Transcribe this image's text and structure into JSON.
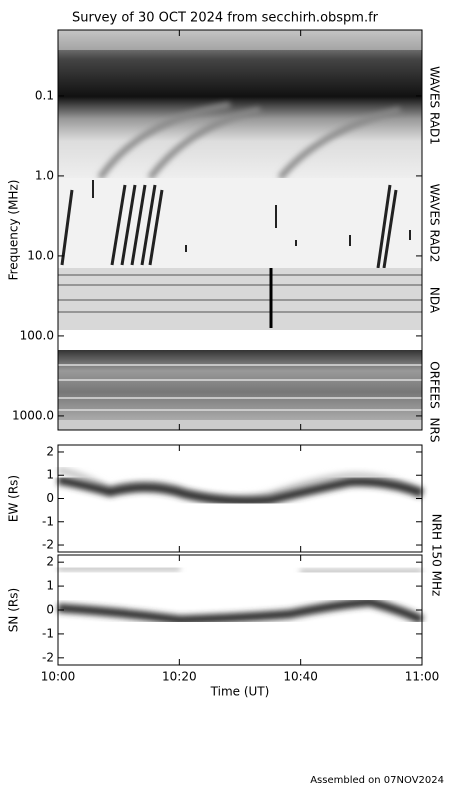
{
  "title": "Survey of 30 OCT 2024 from secchirh.obspm.fr",
  "footer": "Assembled on 07NOV2024",
  "nrh_label": "NRH 150 MHz",
  "chart_data": [
    {
      "type": "spectrogram",
      "ylabel": "Frequency (MHz)",
      "ylog": true,
      "yinvert": true,
      "ylim": [
        0.015,
        1500
      ],
      "yticks": [
        0.1,
        {
          "value": 1,
          "label": "1.0"
        },
        {
          "value": 10,
          "label": "10.0"
        },
        {
          "value": 100,
          "label": "100.0"
        },
        {
          "value": 1000,
          "label": "1000.0"
        }
      ],
      "bands": [
        "WAVES RAD1",
        "WAVES RAD2",
        "NDA",
        "ORFEES",
        "NRS"
      ],
      "xlim": [
        0,
        60
      ]
    },
    {
      "type": "image",
      "ylabel": "EW (Rs)",
      "ylim": [
        -2.3,
        2.3
      ],
      "yticks": [
        2,
        1,
        0,
        -1,
        -2
      ],
      "xlim": [
        0,
        60
      ]
    },
    {
      "type": "image",
      "ylabel": "SN (Rs)",
      "ylim": [
        -2.3,
        2.3
      ],
      "yticks": [
        2,
        1,
        0,
        -1,
        -2
      ],
      "xlim": [
        0,
        60
      ],
      "xlabel": "Time (UT)",
      "xticks": [
        {
          "value": 0,
          "label": "10:00"
        },
        {
          "value": 20,
          "label": "10:20"
        },
        {
          "value": 40,
          "label": "10:40"
        },
        {
          "value": 60,
          "label": "11:00"
        }
      ]
    }
  ]
}
